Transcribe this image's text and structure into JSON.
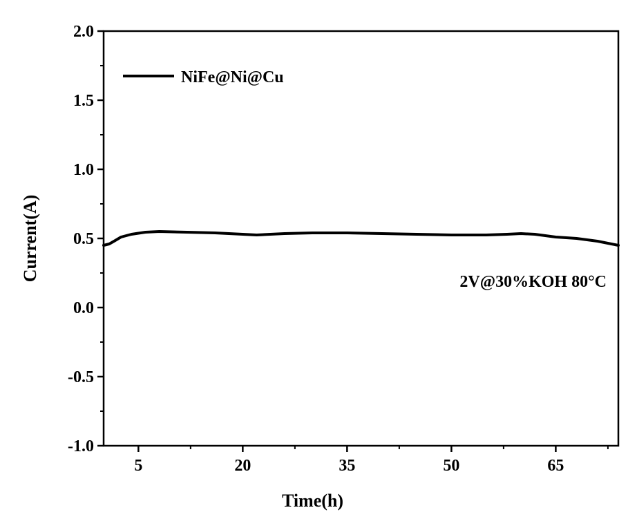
{
  "chart_data": {
    "type": "line",
    "title": "",
    "xlabel": "Time(h)",
    "ylabel": "Current(A)",
    "xlim": [
      0,
      74
    ],
    "ylim": [
      -1.0,
      2.0
    ],
    "x_ticks": [
      5,
      20,
      35,
      50,
      65
    ],
    "x_tick_labels": [
      "5",
      "20",
      "35",
      "50",
      "65"
    ],
    "y_ticks": [
      -1.0,
      -0.5,
      0.0,
      0.5,
      1.0,
      1.5,
      2.0
    ],
    "y_tick_labels": [
      "-1.0",
      "-0.5",
      "0.0",
      "0.5",
      "1.0",
      "1.5",
      "2.0"
    ],
    "grid": false,
    "legend_position": "top-left",
    "annotation": "2V@30%KOH  80°C",
    "series": [
      {
        "name": "NiFe@Ni@Cu",
        "color": "#000000",
        "x": [
          0,
          0.8,
          1.5,
          2.5,
          4,
          6,
          8,
          12,
          16,
          20,
          22,
          26,
          30,
          35,
          40,
          45,
          50,
          55,
          58,
          60,
          62,
          65,
          68,
          71,
          73,
          74
        ],
        "y": [
          0.45,
          0.46,
          0.48,
          0.51,
          0.53,
          0.545,
          0.55,
          0.545,
          0.54,
          0.53,
          0.525,
          0.535,
          0.54,
          0.54,
          0.535,
          0.53,
          0.525,
          0.525,
          0.53,
          0.535,
          0.53,
          0.51,
          0.5,
          0.48,
          0.46,
          0.45
        ]
      }
    ]
  }
}
